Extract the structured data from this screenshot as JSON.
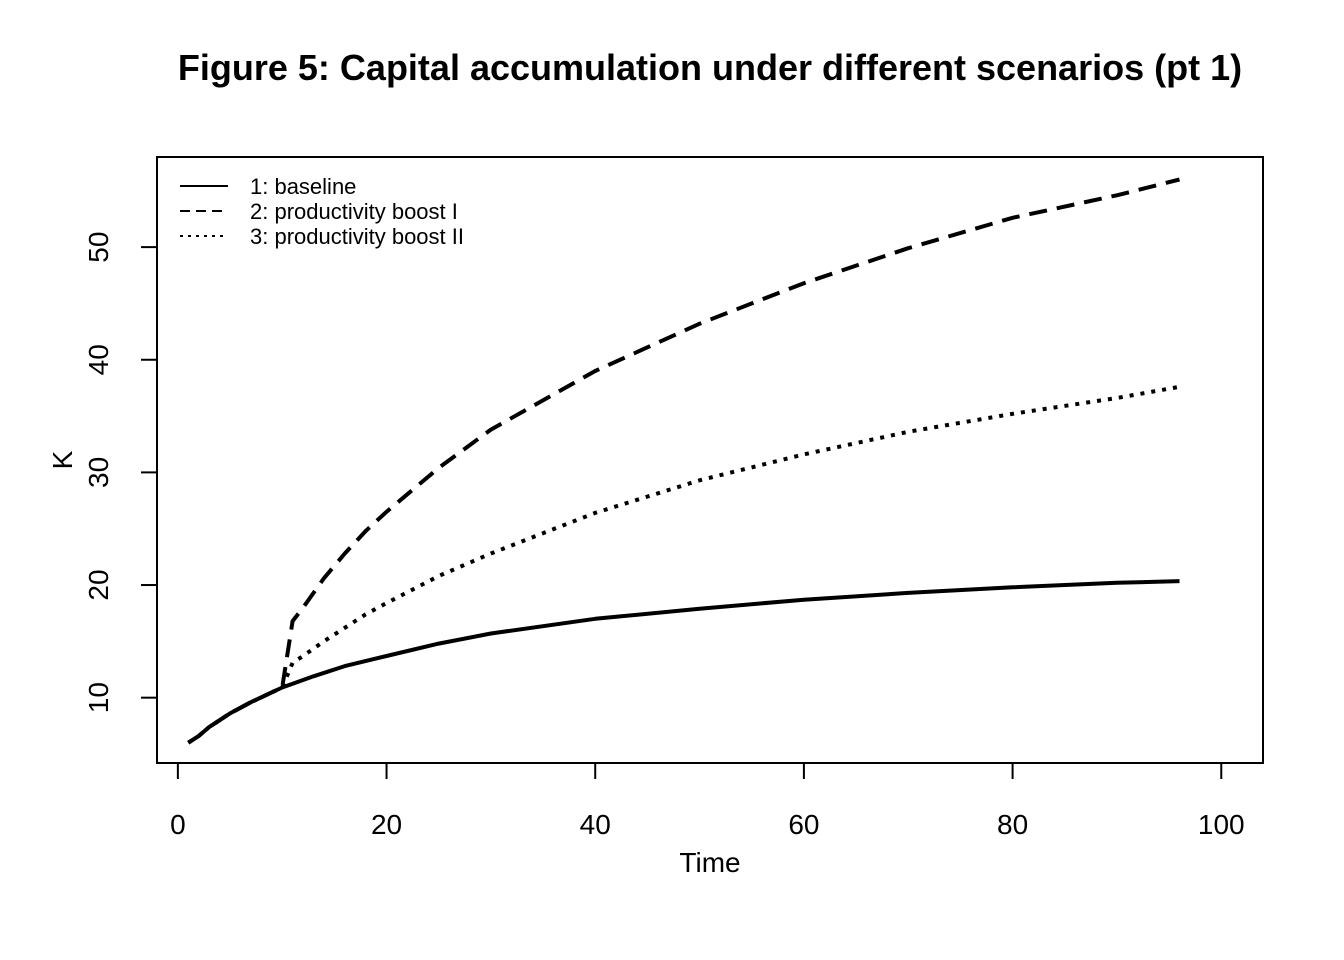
{
  "chart_data": {
    "type": "line",
    "title": "Figure 5: Capital accumulation under different scenarios (pt 1)",
    "xlabel": "Time",
    "ylabel": "K",
    "xlim": [
      -2,
      104
    ],
    "ylim": [
      4.2,
      58
    ],
    "xticks": [
      "0",
      "20",
      "40",
      "60",
      "80",
      "100"
    ],
    "yticks": [
      "10",
      "20",
      "30",
      "40",
      "50"
    ],
    "grid": false,
    "legend_position": "top-left",
    "series": [
      {
        "name": "1: baseline",
        "line_style": "solid",
        "color": "#000000",
        "x": [
          1,
          2,
          3,
          5,
          7,
          10,
          13,
          16,
          20,
          25,
          30,
          40,
          50,
          60,
          70,
          80,
          90,
          96
        ],
        "y": [
          6.0,
          6.6,
          7.4,
          8.6,
          9.6,
          10.9,
          11.9,
          12.8,
          13.7,
          14.8,
          15.7,
          17.0,
          17.9,
          18.7,
          19.3,
          19.8,
          20.2,
          20.35
        ]
      },
      {
        "name": "2: productivity boost I",
        "line_style": "dashed",
        "color": "#000000",
        "x": [
          1,
          2,
          3,
          5,
          7,
          10,
          11,
          12,
          14,
          16,
          18,
          20,
          25,
          30,
          40,
          50,
          60,
          70,
          80,
          90,
          96
        ],
        "y": [
          6.0,
          6.6,
          7.4,
          8.6,
          9.6,
          10.9,
          16.8,
          18.0,
          20.6,
          22.8,
          24.8,
          26.5,
          30.4,
          33.8,
          39.0,
          43.2,
          46.8,
          49.9,
          52.6,
          54.6,
          56.0
        ]
      },
      {
        "name": "3: productivity boost II",
        "line_style": "dotted",
        "color": "#000000",
        "x": [
          1,
          2,
          3,
          5,
          7,
          10,
          11,
          12,
          14,
          16,
          18,
          20,
          25,
          30,
          40,
          50,
          60,
          70,
          80,
          90,
          96
        ],
        "y": [
          6.0,
          6.6,
          7.4,
          8.6,
          9.6,
          10.9,
          13.1,
          13.7,
          15.0,
          16.2,
          17.4,
          18.4,
          20.8,
          22.8,
          26.4,
          29.3,
          31.6,
          33.6,
          35.2,
          36.6,
          37.6
        ]
      }
    ]
  }
}
